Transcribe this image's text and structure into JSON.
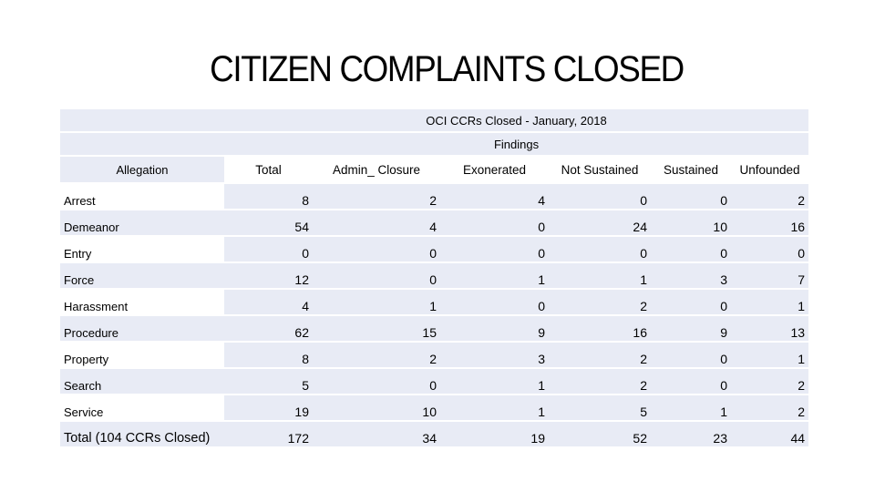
{
  "title": "CITIZEN COMPLAINTS CLOSED",
  "table": {
    "caption": "OCI CCRs Closed - January, 2018",
    "group_header": "Findings",
    "row_header": "Allegation",
    "columns": [
      "Total",
      "Admin_ Closure",
      "Exonerated",
      "Not Sustained",
      "Sustained",
      "Unfounded"
    ],
    "rows": [
      {
        "label": "Arrest",
        "values": [
          "8",
          "2",
          "4",
          "0",
          "0",
          "2"
        ]
      },
      {
        "label": "Demeanor",
        "values": [
          "54",
          "4",
          "0",
          "24",
          "10",
          "16"
        ]
      },
      {
        "label": "Entry",
        "values": [
          "0",
          "0",
          "0",
          "0",
          "0",
          "0"
        ]
      },
      {
        "label": "Force",
        "values": [
          "12",
          "0",
          "1",
          "1",
          "3",
          "7"
        ]
      },
      {
        "label": "Harassment",
        "values": [
          "4",
          "1",
          "0",
          "2",
          "0",
          "1"
        ]
      },
      {
        "label": "Procedure",
        "values": [
          "62",
          "15",
          "9",
          "16",
          "9",
          "13"
        ]
      },
      {
        "label": "Property",
        "values": [
          "8",
          "2",
          "3",
          "2",
          "0",
          "1"
        ]
      },
      {
        "label": "Search",
        "values": [
          "5",
          "0",
          "1",
          "2",
          "0",
          "2"
        ]
      },
      {
        "label": "Service",
        "values": [
          "19",
          "10",
          "1",
          "5",
          "1",
          "2"
        ]
      },
      {
        "label": "Total (104 CCRs Closed)",
        "values": [
          "172",
          "34",
          "19",
          "52",
          "23",
          "44"
        ]
      }
    ]
  }
}
